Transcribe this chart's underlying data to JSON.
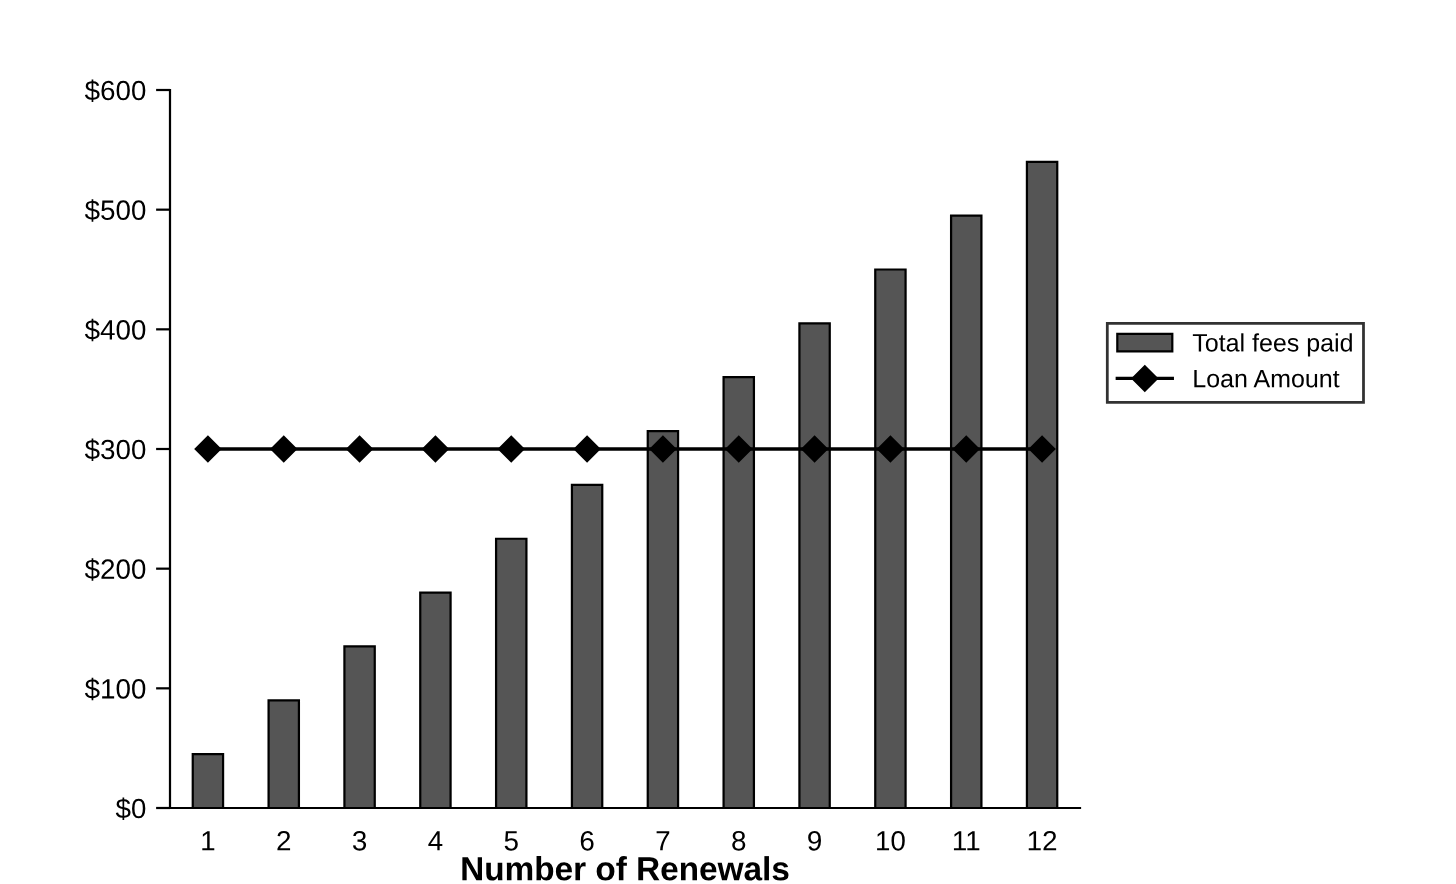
{
  "chart_data": {
    "type": "bar",
    "xlabel": "Number of Renewals",
    "categories": [
      "1",
      "2",
      "3",
      "4",
      "5",
      "6",
      "7",
      "8",
      "9",
      "10",
      "11",
      "12"
    ],
    "series": [
      {
        "name": "Total fees paid",
        "color": "#555555",
        "values": [
          45,
          90,
          135,
          180,
          225,
          270,
          315,
          360,
          405,
          450,
          495,
          540
        ]
      },
      {
        "name": "Loan Amount",
        "type": "line",
        "color": "#000000",
        "marker": "diamond",
        "values": [
          300,
          300,
          300,
          300,
          300,
          300,
          300,
          300,
          300,
          300,
          300,
          300
        ]
      }
    ],
    "ylim": [
      0,
      600
    ],
    "yticks": [
      {
        "value": 0,
        "label": "$0"
      },
      {
        "value": 100,
        "label": "$100"
      },
      {
        "value": 200,
        "label": "$200"
      },
      {
        "value": 300,
        "label": "$300"
      },
      {
        "value": 400,
        "label": "$400"
      },
      {
        "value": 500,
        "label": "$500"
      },
      {
        "value": 600,
        "label": "$600"
      }
    ],
    "grid": false,
    "legend": "right"
  }
}
